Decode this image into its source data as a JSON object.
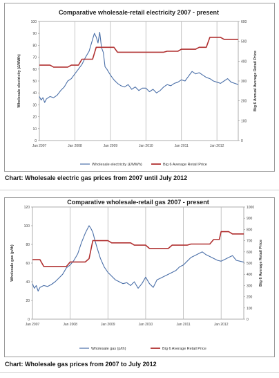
{
  "captions": [
    "Chart: Wholesale electric gas prices from 2007 until July 2012",
    "Chart: Wholesale gas prices from 2007 to July 2012"
  ],
  "chart_data": [
    {
      "type": "line",
      "title": "Comparative wholesale-retail electricity 2007 - present",
      "ylabel": "Wholesale electricity (£/MWh)",
      "y2label": "Big 6 Annual Average Retail Price",
      "x_tick_labels": [
        "Jan 2007",
        "Jan 2008",
        "Jan 2009",
        "Jan 2010",
        "Jan 2011",
        "Jan 2012"
      ],
      "xlim": [
        2007.0,
        2012.6
      ],
      "ylim": [
        0,
        100
      ],
      "y2lim": [
        0,
        600
      ],
      "y_ticks": [
        0,
        10,
        20,
        30,
        40,
        50,
        60,
        70,
        80,
        90,
        100
      ],
      "y2_ticks": [
        0,
        100,
        200,
        300,
        400,
        500,
        600
      ],
      "vertical_gridlines": true,
      "legend_position": "bottom",
      "series": [
        {
          "name": "Wholesale electricity (£/MWh)",
          "axis": "left",
          "color": "#4a6fa8",
          "x": [
            2007.0,
            2007.05,
            2007.1,
            2007.15,
            2007.2,
            2007.3,
            2007.4,
            2007.5,
            2007.6,
            2007.7,
            2007.8,
            2007.9,
            2008.0,
            2008.1,
            2008.2,
            2008.3,
            2008.4,
            2008.5,
            2008.55,
            2008.6,
            2008.65,
            2008.7,
            2008.75,
            2008.8,
            2008.85,
            2008.9,
            2009.0,
            2009.1,
            2009.2,
            2009.3,
            2009.4,
            2009.5,
            2009.6,
            2009.7,
            2009.8,
            2009.9,
            2010.0,
            2010.1,
            2010.2,
            2010.3,
            2010.4,
            2010.5,
            2010.6,
            2010.7,
            2010.8,
            2010.9,
            2011.0,
            2011.1,
            2011.2,
            2011.3,
            2011.4,
            2011.5,
            2011.6,
            2011.7,
            2011.8,
            2011.9,
            2012.0,
            2012.1,
            2012.2,
            2012.3,
            2012.4,
            2012.5,
            2012.6
          ],
          "y": [
            37,
            34,
            36,
            32,
            35,
            37,
            36,
            38,
            42,
            45,
            50,
            52,
            56,
            60,
            64,
            70,
            75,
            85,
            90,
            87,
            82,
            91,
            78,
            74,
            62,
            60,
            55,
            51,
            48,
            46,
            45,
            47,
            43,
            45,
            42,
            44,
            44,
            41,
            43,
            40,
            42,
            45,
            47,
            46,
            48,
            49,
            51,
            50,
            54,
            58,
            56,
            57,
            55,
            53,
            52,
            50,
            49,
            48,
            50,
            52,
            49,
            48,
            47
          ]
        },
        {
          "name": "Big 6 Average Retail Price",
          "axis": "right",
          "color": "#b03030",
          "x": [
            2007.0,
            2007.3,
            2007.4,
            2007.8,
            2007.9,
            2008.1,
            2008.2,
            2008.5,
            2008.6,
            2009.1,
            2009.2,
            2010.0,
            2010.1,
            2010.5,
            2010.6,
            2010.9,
            2011.0,
            2011.4,
            2011.5,
            2011.7,
            2011.8,
            2012.1,
            2012.2,
            2012.6
          ],
          "y": [
            380,
            380,
            370,
            370,
            380,
            380,
            410,
            410,
            470,
            470,
            445,
            445,
            445,
            445,
            450,
            450,
            460,
            460,
            470,
            470,
            520,
            520,
            510,
            510
          ]
        }
      ]
    },
    {
      "type": "line",
      "title": "Comparative wholesale-retail gas 2007 - present",
      "ylabel": "Wholesale gas (p/th)",
      "y2label": "Big 6 Average Retail Price",
      "x_tick_labels": [
        "Jan 2007",
        "Jan 2008",
        "Jan 2009",
        "Jan 2010",
        "Jan 2011",
        "Jan 2012"
      ],
      "xlim": [
        2007.0,
        2012.6
      ],
      "ylim": [
        0,
        120
      ],
      "y2lim": [
        0,
        1000
      ],
      "y_ticks": [
        0,
        20,
        40,
        60,
        80,
        100,
        120
      ],
      "y2_ticks": [
        0,
        100,
        200,
        300,
        400,
        500,
        600,
        700,
        800,
        900,
        1000
      ],
      "vertical_gridlines": true,
      "legend_position": "bottom",
      "series": [
        {
          "name": "Wholesale gas (p/th)",
          "axis": "left",
          "color": "#4a6fa8",
          "x": [
            2007.0,
            2007.05,
            2007.1,
            2007.15,
            2007.2,
            2007.3,
            2007.4,
            2007.5,
            2007.6,
            2007.7,
            2007.8,
            2007.9,
            2008.0,
            2008.1,
            2008.2,
            2008.3,
            2008.4,
            2008.45,
            2008.5,
            2008.55,
            2008.6,
            2008.65,
            2008.7,
            2008.8,
            2008.9,
            2009.0,
            2009.1,
            2009.2,
            2009.3,
            2009.4,
            2009.5,
            2009.6,
            2009.7,
            2009.8,
            2009.9,
            2010.0,
            2010.1,
            2010.2,
            2010.3,
            2010.4,
            2010.5,
            2010.6,
            2010.7,
            2010.8,
            2010.9,
            2011.0,
            2011.1,
            2011.2,
            2011.3,
            2011.4,
            2011.5,
            2011.6,
            2011.7,
            2011.8,
            2011.9,
            2012.0,
            2012.1,
            2012.2,
            2012.3,
            2012.4,
            2012.5,
            2012.6
          ],
          "y": [
            38,
            33,
            36,
            30,
            34,
            36,
            35,
            37,
            40,
            44,
            48,
            55,
            58,
            63,
            70,
            82,
            92,
            96,
            100,
            97,
            93,
            85,
            78,
            65,
            56,
            50,
            46,
            42,
            40,
            38,
            39,
            36,
            40,
            33,
            38,
            45,
            38,
            34,
            42,
            44,
            46,
            48,
            50,
            52,
            56,
            58,
            62,
            66,
            68,
            70,
            72,
            69,
            67,
            65,
            63,
            62,
            64,
            66,
            68,
            63,
            62,
            61
          ]
        },
        {
          "name": "Big 6 Average Retail Price",
          "axis": "right",
          "color": "#b03030",
          "x": [
            2007.0,
            2007.2,
            2007.3,
            2007.9,
            2008.0,
            2008.4,
            2008.5,
            2008.55,
            2008.6,
            2009.0,
            2009.1,
            2009.6,
            2009.7,
            2010.0,
            2010.1,
            2010.6,
            2010.7,
            2011.1,
            2011.2,
            2011.7,
            2011.8,
            2011.95,
            2012.0,
            2012.2,
            2012.3,
            2012.6
          ],
          "y": [
            530,
            530,
            470,
            470,
            510,
            510,
            540,
            620,
            700,
            700,
            680,
            680,
            660,
            660,
            630,
            630,
            660,
            660,
            670,
            670,
            710,
            710,
            780,
            780,
            760,
            760
          ]
        }
      ]
    }
  ]
}
